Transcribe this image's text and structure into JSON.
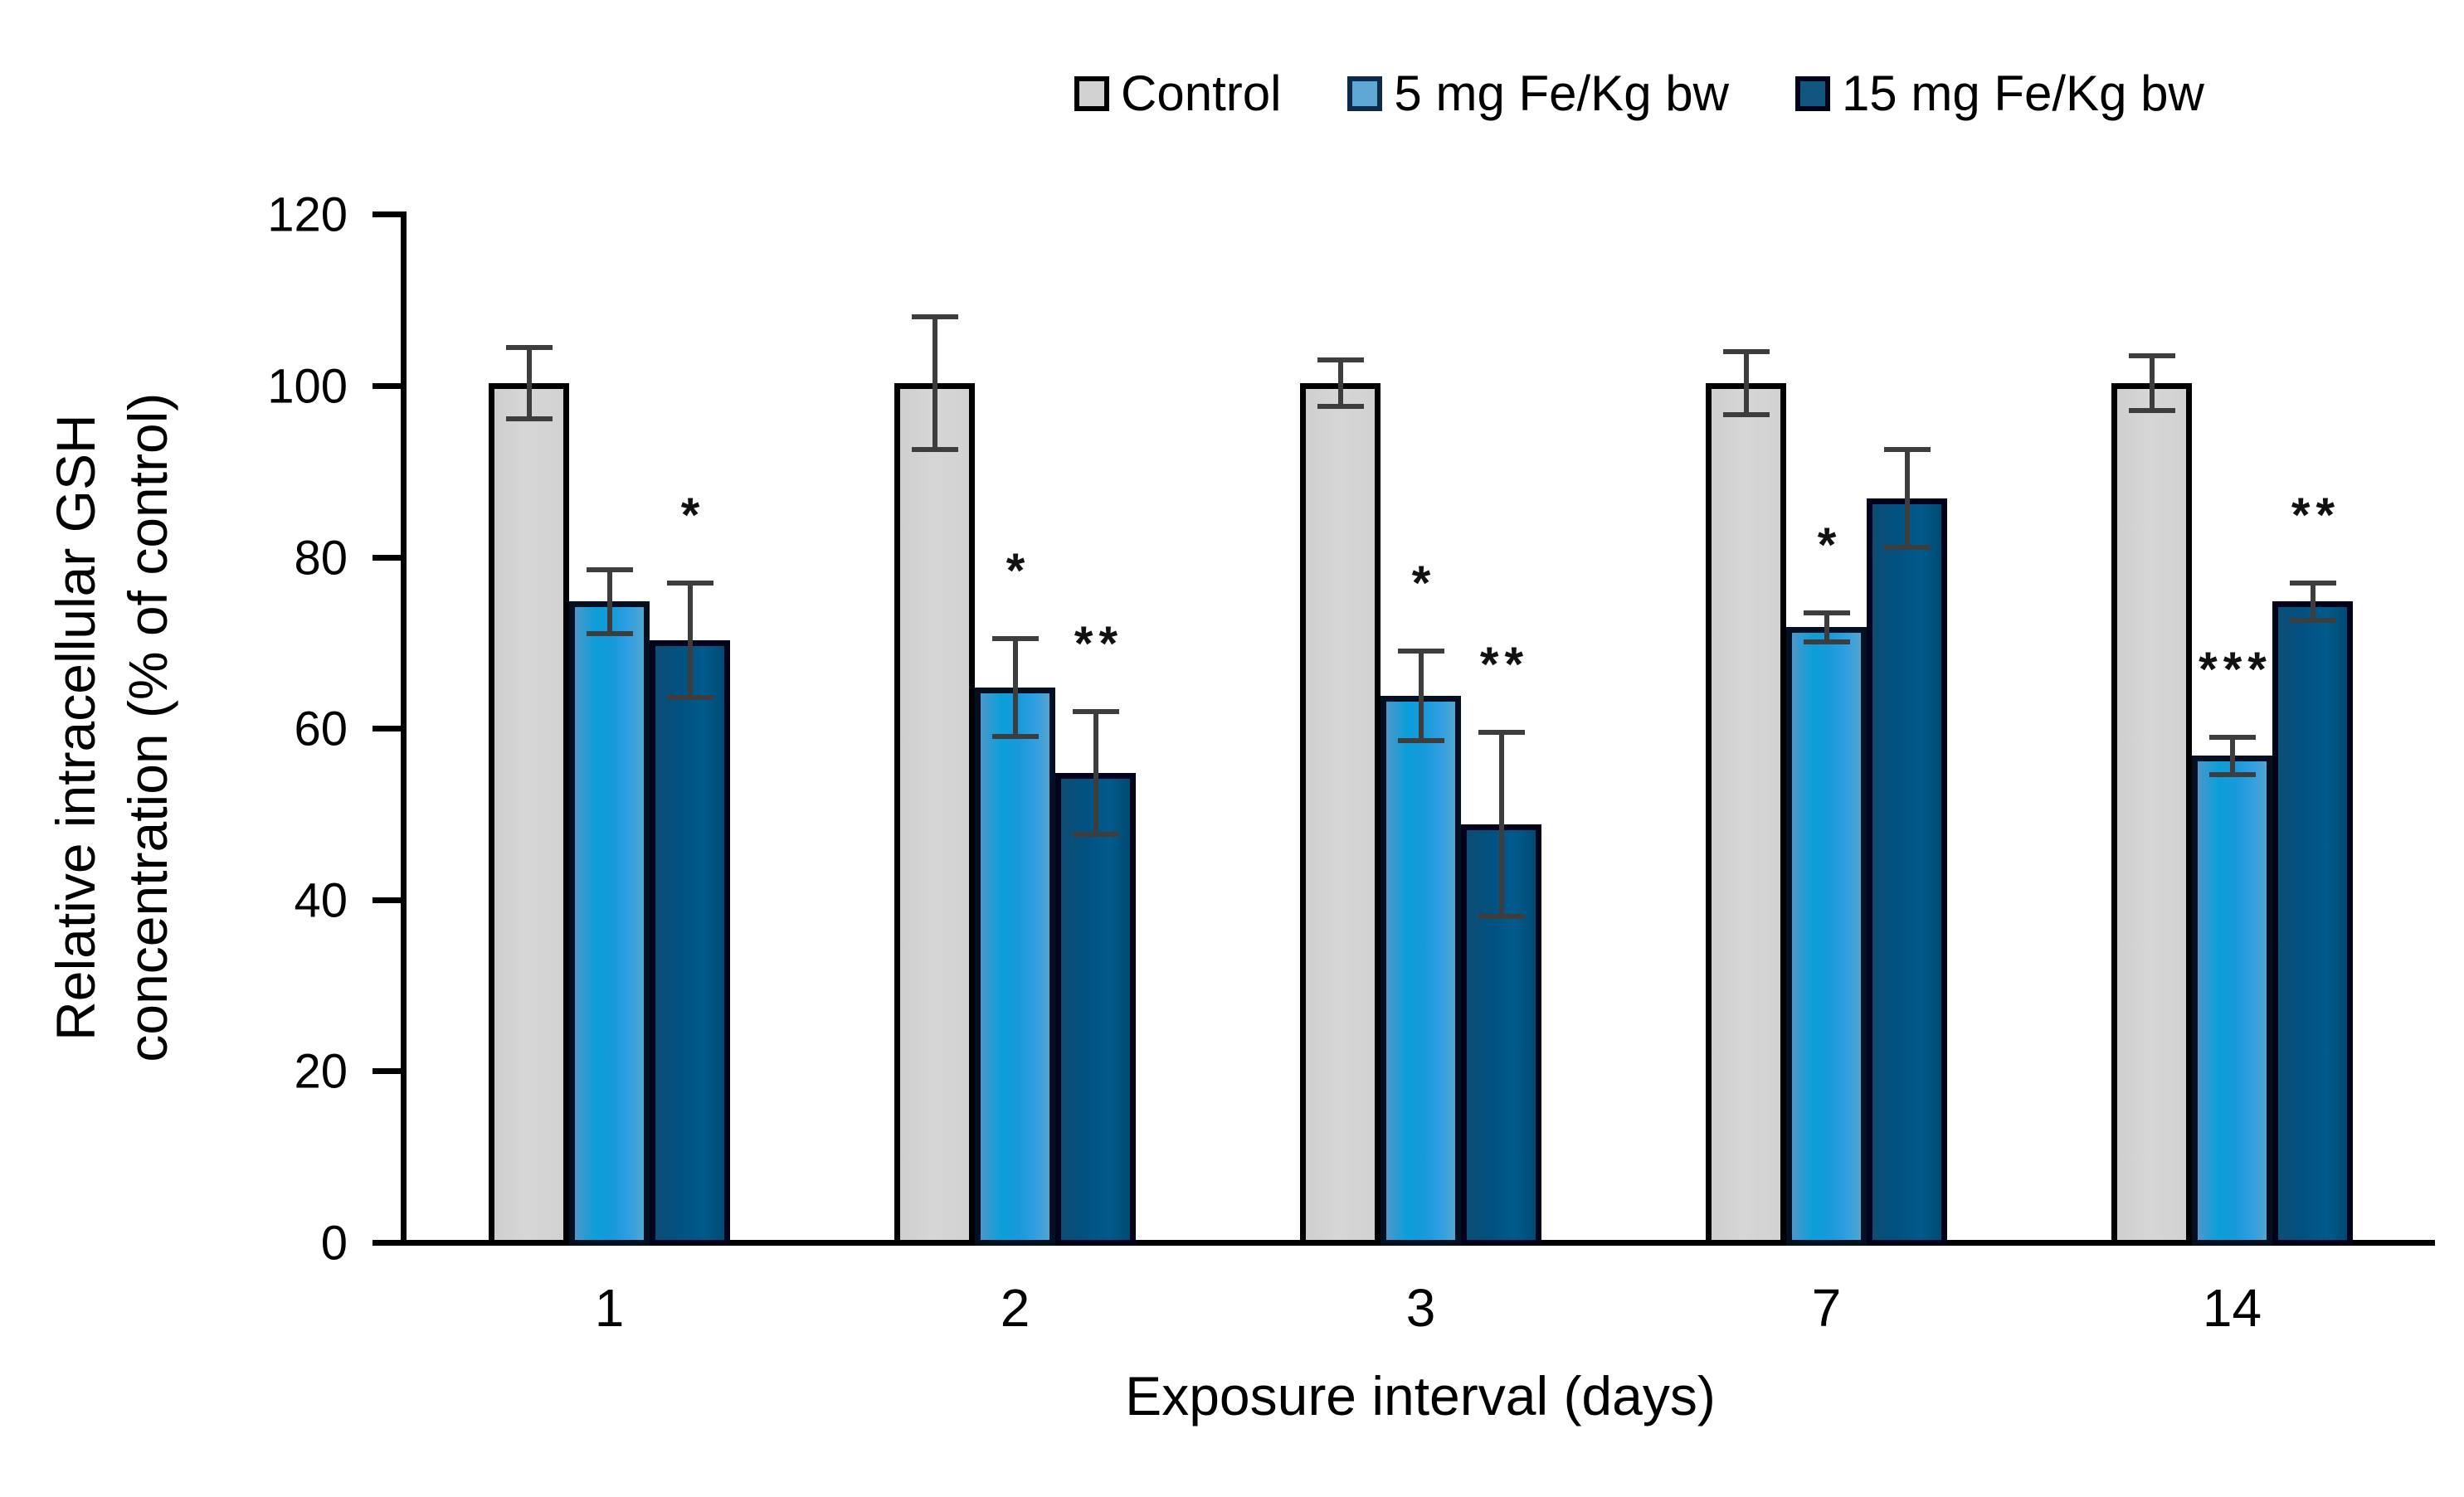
{
  "chart_data": {
    "type": "bar",
    "title": "",
    "xlabel": "Exposure interval  (days)",
    "ylabel_lines": [
      "Relative  intracellular  GSH",
      "concentration  (% of control)"
    ],
    "categories": [
      "1",
      "2",
      "3",
      "7",
      "14"
    ],
    "ylim": [
      0,
      120
    ],
    "yticks": [
      0,
      20,
      40,
      60,
      80,
      100,
      120
    ],
    "grid": "off",
    "legend_position": "top",
    "error_bar_color": "#3d3d3d",
    "series": [
      {
        "name": "Control",
        "fill": "#d2d2d2",
        "border": "#000000",
        "values": [
          100,
          100,
          100,
          100,
          100
        ],
        "errors": [
          4.5,
          8,
          3,
          4,
          3.5
        ],
        "sig": [
          "",
          "",
          "",
          "",
          ""
        ]
      },
      {
        "name": "5 mg Fe/Kg bw",
        "fill": "#1b9ad8",
        "border": "#041022",
        "values": [
          74.5,
          64.5,
          63.5,
          71.5,
          56.5
        ],
        "errors": [
          4,
          6,
          5.5,
          2,
          2.5
        ],
        "sig": [
          "",
          "*",
          "*",
          "*",
          "***"
        ]
      },
      {
        "name": "15 mg Fe/Kg bw",
        "fill": "#015180",
        "border": "#02021a",
        "values": [
          70,
          54.5,
          48.5,
          86.5,
          74.5
        ],
        "errors": [
          7,
          7.5,
          11,
          6,
          2.5
        ],
        "sig": [
          "*",
          "**",
          "**",
          "",
          "**"
        ]
      }
    ]
  }
}
